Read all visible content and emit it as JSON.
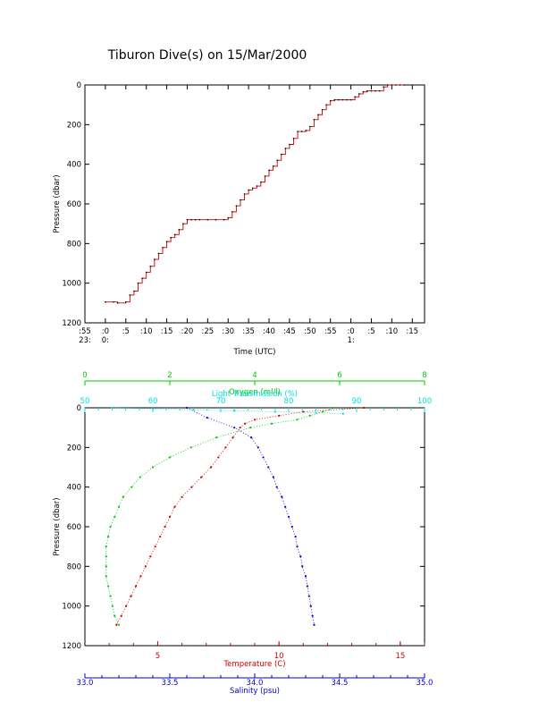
{
  "chart_data": [
    {
      "type": "line",
      "title": "Tiburon Dive(s) on 15/Mar/2000",
      "xlabel": "Time (UTC)",
      "ylabel": "Pressure (dbar)",
      "x_unit": "minutes from 23:55 UTC",
      "xlim": [
        0,
        83
      ],
      "ylim": [
        1200,
        0
      ],
      "y_ticks": [
        0,
        200,
        400,
        600,
        800,
        1000,
        1200
      ],
      "x_ticks": [
        {
          "x": 0,
          "label": ":55",
          "sub": "23:"
        },
        {
          "x": 5,
          "label": ":0",
          "sub": "0:"
        },
        {
          "x": 10,
          "label": ":5",
          "sub": ""
        },
        {
          "x": 15,
          "label": ":10",
          "sub": ""
        },
        {
          "x": 20,
          "label": ":15",
          "sub": ""
        },
        {
          "x": 25,
          "label": ":20",
          "sub": ""
        },
        {
          "x": 30,
          "label": ":25",
          "sub": ""
        },
        {
          "x": 35,
          "label": ":30",
          "sub": ""
        },
        {
          "x": 40,
          "label": ":35",
          "sub": ""
        },
        {
          "x": 45,
          "label": ":40",
          "sub": ""
        },
        {
          "x": 50,
          "label": ":45",
          "sub": ""
        },
        {
          "x": 55,
          "label": ":50",
          "sub": ""
        },
        {
          "x": 60,
          "label": ":55",
          "sub": ""
        },
        {
          "x": 65,
          "label": ":0",
          "sub": "1:"
        },
        {
          "x": 70,
          "label": ":5",
          "sub": ""
        },
        {
          "x": 75,
          "label": ":10",
          "sub": ""
        },
        {
          "x": 80,
          "label": ":15",
          "sub": ""
        }
      ],
      "series": [
        {
          "color": "#cc0000",
          "x": [
            5,
            7,
            8,
            10,
            11,
            12,
            13,
            14,
            15,
            16,
            17,
            18,
            19,
            20,
            21,
            22,
            23,
            24,
            25,
            26,
            27,
            28,
            30,
            32,
            34,
            35,
            36,
            37,
            38,
            39,
            40,
            41,
            42,
            43,
            44,
            45,
            46,
            47,
            48,
            49,
            50,
            51,
            52,
            53,
            54,
            55,
            56,
            57,
            58,
            59,
            60,
            61,
            62,
            63,
            64,
            65,
            66,
            67,
            68,
            69,
            70,
            71,
            72,
            73,
            74,
            75,
            76,
            77,
            78
          ],
          "values": [
            1095,
            1095,
            1100,
            1095,
            1060,
            1040,
            1000,
            975,
            945,
            915,
            880,
            850,
            820,
            790,
            770,
            755,
            730,
            700,
            680,
            680,
            680,
            680,
            680,
            680,
            680,
            670,
            640,
            610,
            580,
            550,
            530,
            520,
            510,
            490,
            460,
            430,
            410,
            380,
            350,
            320,
            300,
            270,
            235,
            235,
            230,
            210,
            175,
            150,
            125,
            100,
            80,
            75,
            75,
            75,
            75,
            75,
            60,
            45,
            35,
            30,
            30,
            30,
            30,
            10,
            0,
            0,
            0,
            0,
            0
          ]
        }
      ]
    },
    {
      "type": "scatter",
      "ylabel": "Pressure (dbar)",
      "ylim": [
        1200,
        0
      ],
      "y_ticks": [
        0,
        200,
        400,
        600,
        800,
        1000,
        1200
      ],
      "grid": false,
      "axes": [
        {
          "name": "oxygen",
          "label": "Oxygen (ml/l)",
          "position": "top",
          "color": "#00c800",
          "range": [
            0,
            8
          ],
          "ticks": [
            0,
            2,
            4,
            6,
            8
          ]
        },
        {
          "name": "transmission",
          "label": "Light Transmission (%)",
          "position": "top",
          "color": "#00e0e0",
          "range": [
            50,
            100
          ],
          "ticks": [
            50,
            60,
            70,
            80,
            90,
            100
          ]
        },
        {
          "name": "temperature",
          "label": "Temperature (C)",
          "position": "bottom",
          "color": "#cc0000",
          "range": [
            2,
            16
          ],
          "ticks": [
            5,
            10,
            15
          ]
        },
        {
          "name": "salinity",
          "label": "Salinity (psu)",
          "position": "bottom",
          "color": "#0000cc",
          "range": [
            33.0,
            35.0
          ],
          "ticks": [
            33.0,
            33.5,
            34.0,
            34.5,
            35.0
          ],
          "tick_labels": [
            "33.0",
            "33.5",
            "34.0",
            "34.5",
            "35.0"
          ]
        }
      ],
      "series": [
        {
          "axis": "temperature",
          "color": "#cc0000",
          "pressure": [
            0,
            20,
            40,
            60,
            80,
            100,
            150,
            200,
            250,
            300,
            350,
            400,
            450,
            500,
            550,
            600,
            650,
            700,
            750,
            800,
            850,
            900,
            950,
            1000,
            1050,
            1095
          ],
          "values": [
            13.5,
            11.0,
            10.0,
            9.0,
            8.6,
            8.4,
            8.1,
            7.8,
            7.5,
            7.2,
            6.8,
            6.4,
            6.0,
            5.7,
            5.5,
            5.3,
            5.1,
            4.9,
            4.7,
            4.5,
            4.3,
            4.1,
            3.9,
            3.7,
            3.5,
            3.3
          ]
        },
        {
          "axis": "salinity",
          "color": "#0000cc",
          "pressure": [
            0,
            50,
            100,
            150,
            200,
            250,
            300,
            350,
            400,
            450,
            500,
            550,
            600,
            650,
            700,
            750,
            800,
            850,
            900,
            950,
            1000,
            1050,
            1095
          ],
          "values": [
            33.6,
            33.72,
            33.88,
            33.98,
            34.02,
            34.05,
            34.08,
            34.11,
            34.13,
            34.16,
            34.18,
            34.2,
            34.22,
            34.24,
            34.25,
            34.27,
            34.28,
            34.3,
            34.31,
            34.32,
            34.33,
            34.34,
            34.35
          ]
        },
        {
          "axis": "oxygen",
          "color": "#00c800",
          "pressure": [
            0,
            20,
            40,
            60,
            80,
            100,
            150,
            200,
            250,
            300,
            350,
            400,
            450,
            500,
            550,
            600,
            650,
            700,
            750,
            800,
            850,
            900,
            950,
            1000,
            1050,
            1095
          ],
          "values": [
            5.9,
            5.6,
            5.3,
            5.0,
            4.4,
            3.9,
            3.1,
            2.5,
            2.0,
            1.6,
            1.3,
            1.1,
            0.9,
            0.8,
            0.7,
            0.6,
            0.55,
            0.5,
            0.5,
            0.5,
            0.5,
            0.55,
            0.6,
            0.65,
            0.7,
            0.8
          ]
        },
        {
          "axis": "transmission",
          "color": "#00e0e0",
          "pressure": [
            0,
            5,
            10,
            15,
            20,
            25,
            30
          ],
          "values": [
            54,
            60,
            66,
            72,
            78,
            84,
            88
          ]
        }
      ]
    }
  ]
}
